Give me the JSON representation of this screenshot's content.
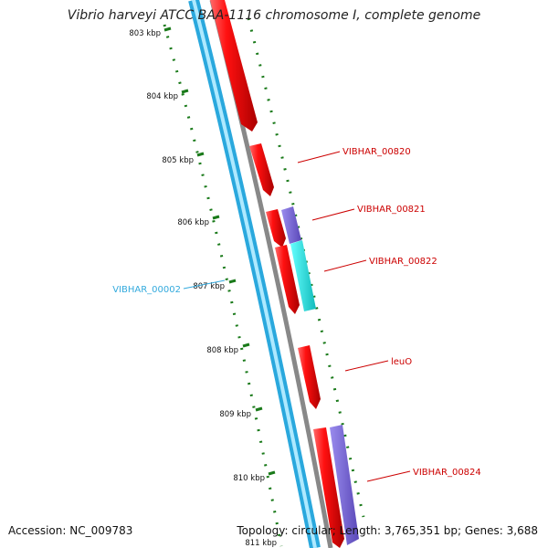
{
  "title": "Vibrio harveyi ATCC BAA-1116 chromosome I, complete genome",
  "accession": "Accession: NC_009783",
  "topology": "Topology: circular; Length: 3,765,351 bp; Genes: 3,688",
  "ruler": [
    "803 kbp",
    "804 kbp",
    "805 kbp",
    "806 kbp",
    "807 kbp",
    "808 kbp",
    "809 kbp",
    "810 kbp",
    "811 kbp"
  ],
  "genes_right": [
    "VIBHAR_00820",
    "VIBHAR_00821",
    "VIBHAR_00822",
    "leuO",
    "VIBHAR_00824"
  ],
  "genes_left": [
    "VIBHAR_00002"
  ],
  "colors": {
    "cds": "#ee0000",
    "gene_purple": "#7b68d4",
    "gene_cyan": "#22dddd",
    "backbone_blue": "#33bbee",
    "backbone_gray": "#888888",
    "tick": "#1a7a1a",
    "label_red": "#cc0000",
    "label_blue": "#33aadd"
  }
}
